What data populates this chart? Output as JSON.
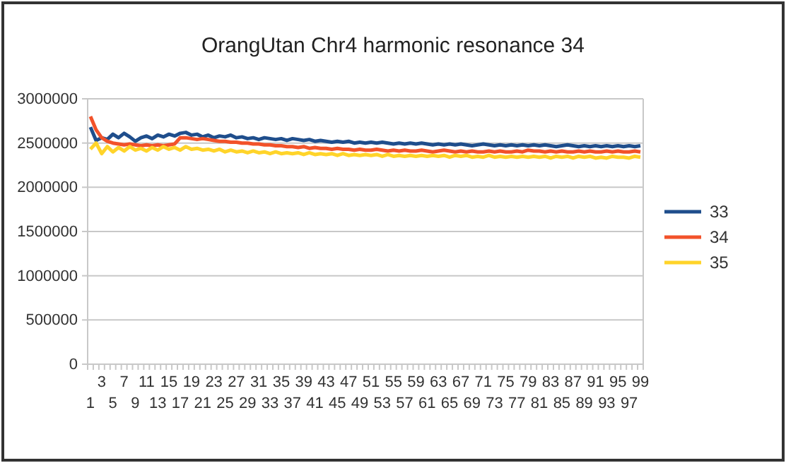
{
  "chart_data": {
    "type": "line",
    "title": "OrangUtan Chr4 harmonic resonance 34",
    "categories": [
      "1",
      null,
      "3",
      null,
      "5",
      null,
      "7",
      null,
      "9",
      null,
      "11",
      null,
      "13",
      null,
      "15",
      null,
      "17",
      null,
      "19",
      null,
      "21",
      null,
      "23",
      null,
      "25",
      null,
      "27",
      null,
      "29",
      null,
      "31",
      null,
      "33",
      null,
      "35",
      null,
      "37",
      null,
      "39",
      null,
      "41",
      null,
      "43",
      null,
      "45",
      null,
      "47",
      null,
      "49",
      null,
      "51",
      null,
      "53",
      null,
      "55",
      null,
      "57",
      null,
      "59",
      null,
      "61",
      null,
      "63",
      null,
      "65",
      null,
      "67",
      null,
      "69",
      null,
      "71",
      null,
      "73",
      null,
      "75",
      null,
      "77",
      null,
      "79",
      null,
      "81",
      null,
      "83",
      null,
      "85",
      null,
      "87",
      null,
      "89",
      null,
      "91",
      null,
      "93",
      null,
      "95",
      null,
      "97",
      null,
      "99"
    ],
    "series": [
      {
        "name": "33",
        "color": "#1f4e8c",
        "values": [
          2680000,
          2530000,
          2560000,
          2540000,
          2600000,
          2560000,
          2610000,
          2570000,
          2520000,
          2560000,
          2580000,
          2550000,
          2590000,
          2570000,
          2600000,
          2580000,
          2610000,
          2620000,
          2590000,
          2600000,
          2570000,
          2590000,
          2560000,
          2580000,
          2570000,
          2590000,
          2560000,
          2570000,
          2550000,
          2560000,
          2540000,
          2560000,
          2550000,
          2540000,
          2550000,
          2530000,
          2550000,
          2540000,
          2530000,
          2540000,
          2520000,
          2530000,
          2520000,
          2510000,
          2520000,
          2510000,
          2520000,
          2500000,
          2510000,
          2500000,
          2510000,
          2500000,
          2510000,
          2500000,
          2490000,
          2500000,
          2490000,
          2500000,
          2490000,
          2500000,
          2490000,
          2480000,
          2490000,
          2480000,
          2490000,
          2480000,
          2490000,
          2480000,
          2470000,
          2480000,
          2490000,
          2480000,
          2470000,
          2480000,
          2470000,
          2480000,
          2470000,
          2480000,
          2470000,
          2480000,
          2470000,
          2480000,
          2470000,
          2460000,
          2470000,
          2480000,
          2470000,
          2460000,
          2470000,
          2460000,
          2470000,
          2460000,
          2470000,
          2460000,
          2470000,
          2460000,
          2470000,
          2460000,
          2470000
        ]
      },
      {
        "name": "34",
        "color": "#f2522a",
        "values": [
          2800000,
          2650000,
          2560000,
          2520000,
          2500000,
          2490000,
          2480000,
          2490000,
          2480000,
          2470000,
          2480000,
          2470000,
          2480000,
          2470000,
          2480000,
          2490000,
          2560000,
          2560000,
          2550000,
          2540000,
          2550000,
          2540000,
          2530000,
          2520000,
          2520000,
          2510000,
          2510000,
          2500000,
          2500000,
          2490000,
          2490000,
          2480000,
          2480000,
          2470000,
          2470000,
          2460000,
          2460000,
          2450000,
          2460000,
          2440000,
          2450000,
          2440000,
          2440000,
          2430000,
          2440000,
          2430000,
          2430000,
          2420000,
          2430000,
          2420000,
          2420000,
          2430000,
          2420000,
          2410000,
          2420000,
          2410000,
          2420000,
          2410000,
          2410000,
          2420000,
          2410000,
          2400000,
          2410000,
          2420000,
          2410000,
          2400000,
          2410000,
          2400000,
          2410000,
          2400000,
          2400000,
          2410000,
          2400000,
          2410000,
          2400000,
          2400000,
          2410000,
          2400000,
          2420000,
          2410000,
          2410000,
          2400000,
          2410000,
          2400000,
          2410000,
          2400000,
          2400000,
          2410000,
          2400000,
          2410000,
          2400000,
          2400000,
          2410000,
          2400000,
          2410000,
          2400000,
          2400000,
          2410000,
          2400000
        ]
      },
      {
        "name": "35",
        "color": "#ffd42a",
        "values": [
          2430000,
          2500000,
          2380000,
          2460000,
          2400000,
          2450000,
          2410000,
          2460000,
          2420000,
          2440000,
          2410000,
          2450000,
          2420000,
          2460000,
          2430000,
          2450000,
          2420000,
          2460000,
          2430000,
          2440000,
          2420000,
          2430000,
          2410000,
          2430000,
          2400000,
          2420000,
          2400000,
          2410000,
          2390000,
          2410000,
          2390000,
          2400000,
          2380000,
          2400000,
          2380000,
          2390000,
          2380000,
          2390000,
          2370000,
          2390000,
          2370000,
          2380000,
          2370000,
          2380000,
          2360000,
          2380000,
          2360000,
          2370000,
          2360000,
          2370000,
          2360000,
          2370000,
          2350000,
          2370000,
          2350000,
          2360000,
          2350000,
          2360000,
          2350000,
          2360000,
          2350000,
          2360000,
          2350000,
          2360000,
          2340000,
          2360000,
          2350000,
          2360000,
          2340000,
          2350000,
          2340000,
          2360000,
          2340000,
          2350000,
          2340000,
          2350000,
          2340000,
          2350000,
          2340000,
          2350000,
          2340000,
          2350000,
          2330000,
          2350000,
          2340000,
          2350000,
          2330000,
          2350000,
          2340000,
          2350000,
          2330000,
          2340000,
          2330000,
          2350000,
          2340000,
          2340000,
          2330000,
          2350000,
          2340000
        ]
      }
    ],
    "ylim": [
      0,
      3000000
    ],
    "yticks": [
      0,
      500000,
      1000000,
      1500000,
      2000000,
      2500000,
      3000000
    ],
    "grid": "y",
    "legend": "right",
    "marker": "none",
    "line_style": "solid"
  }
}
